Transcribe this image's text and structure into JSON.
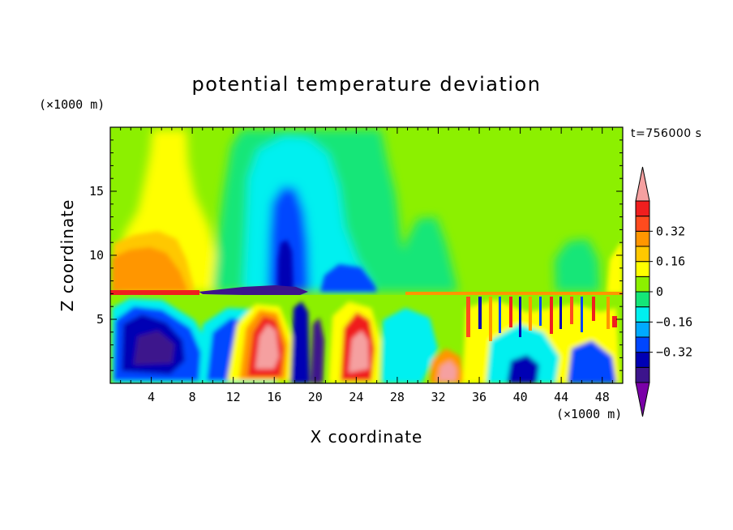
{
  "chart_data": {
    "type": "heatmap",
    "title": "potential temperature deviation",
    "time_label": "t=756000 s",
    "xlabel": "X coordinate",
    "ylabel": "Z coordinate",
    "x_unit_label": "(×1000 m)",
    "z_unit_label": "(×1000 m)",
    "xlim": [
      0,
      50
    ],
    "ylim": [
      0,
      20
    ],
    "x_ticks": [
      4,
      8,
      12,
      16,
      20,
      24,
      28,
      32,
      36,
      40,
      44,
      48
    ],
    "x_tick_labels": [
      "4",
      "8",
      "12",
      "16",
      "20",
      "24",
      "28",
      "32",
      "36",
      "40",
      "44",
      "48"
    ],
    "y_ticks": [
      5,
      10,
      15
    ],
    "y_tick_labels": [
      "5",
      "10",
      "15"
    ],
    "colorbar": {
      "levels": [
        -0.48,
        -0.4,
        -0.32,
        -0.24,
        -0.16,
        -0.08,
        0,
        0.08,
        0.16,
        0.24,
        0.32,
        0.4
      ],
      "labels": [
        "0.32",
        "0.16",
        "0",
        "−0.16",
        "−0.32"
      ],
      "label_values": [
        0.32,
        0.16,
        0,
        -0.16,
        -0.32
      ],
      "colors": [
        "#7a00a8",
        "#3c148c",
        "#0000b4",
        "#0046ff",
        "#00aaff",
        "#00f0f0",
        "#14e678",
        "#8cf000",
        "#ffff00",
        "#ffc800",
        "#ff9600",
        "#ff4b1e",
        "#f01e1e",
        "#f5a0a0"
      ]
    },
    "features": [
      {
        "x": 5,
        "z": 2.2,
        "value": -0.4
      },
      {
        "x": 16.5,
        "z": 3.5,
        "value": 0.45
      },
      {
        "x": 23,
        "z": 2.5,
        "value": 0.42
      },
      {
        "x": 32.5,
        "z": 1.5,
        "value": 0.4
      },
      {
        "x": 17.5,
        "z": 12,
        "value": -0.3
      },
      {
        "x": 21,
        "z": 8,
        "value": -0.1
      },
      {
        "x": 5,
        "z": 10,
        "value": 0.2
      },
      {
        "x": 6,
        "z": 14,
        "value": 0.12
      },
      {
        "x": 43.5,
        "z": 10,
        "value": -0.05
      },
      {
        "x": 40,
        "z": 1,
        "value": -0.35
      }
    ]
  }
}
